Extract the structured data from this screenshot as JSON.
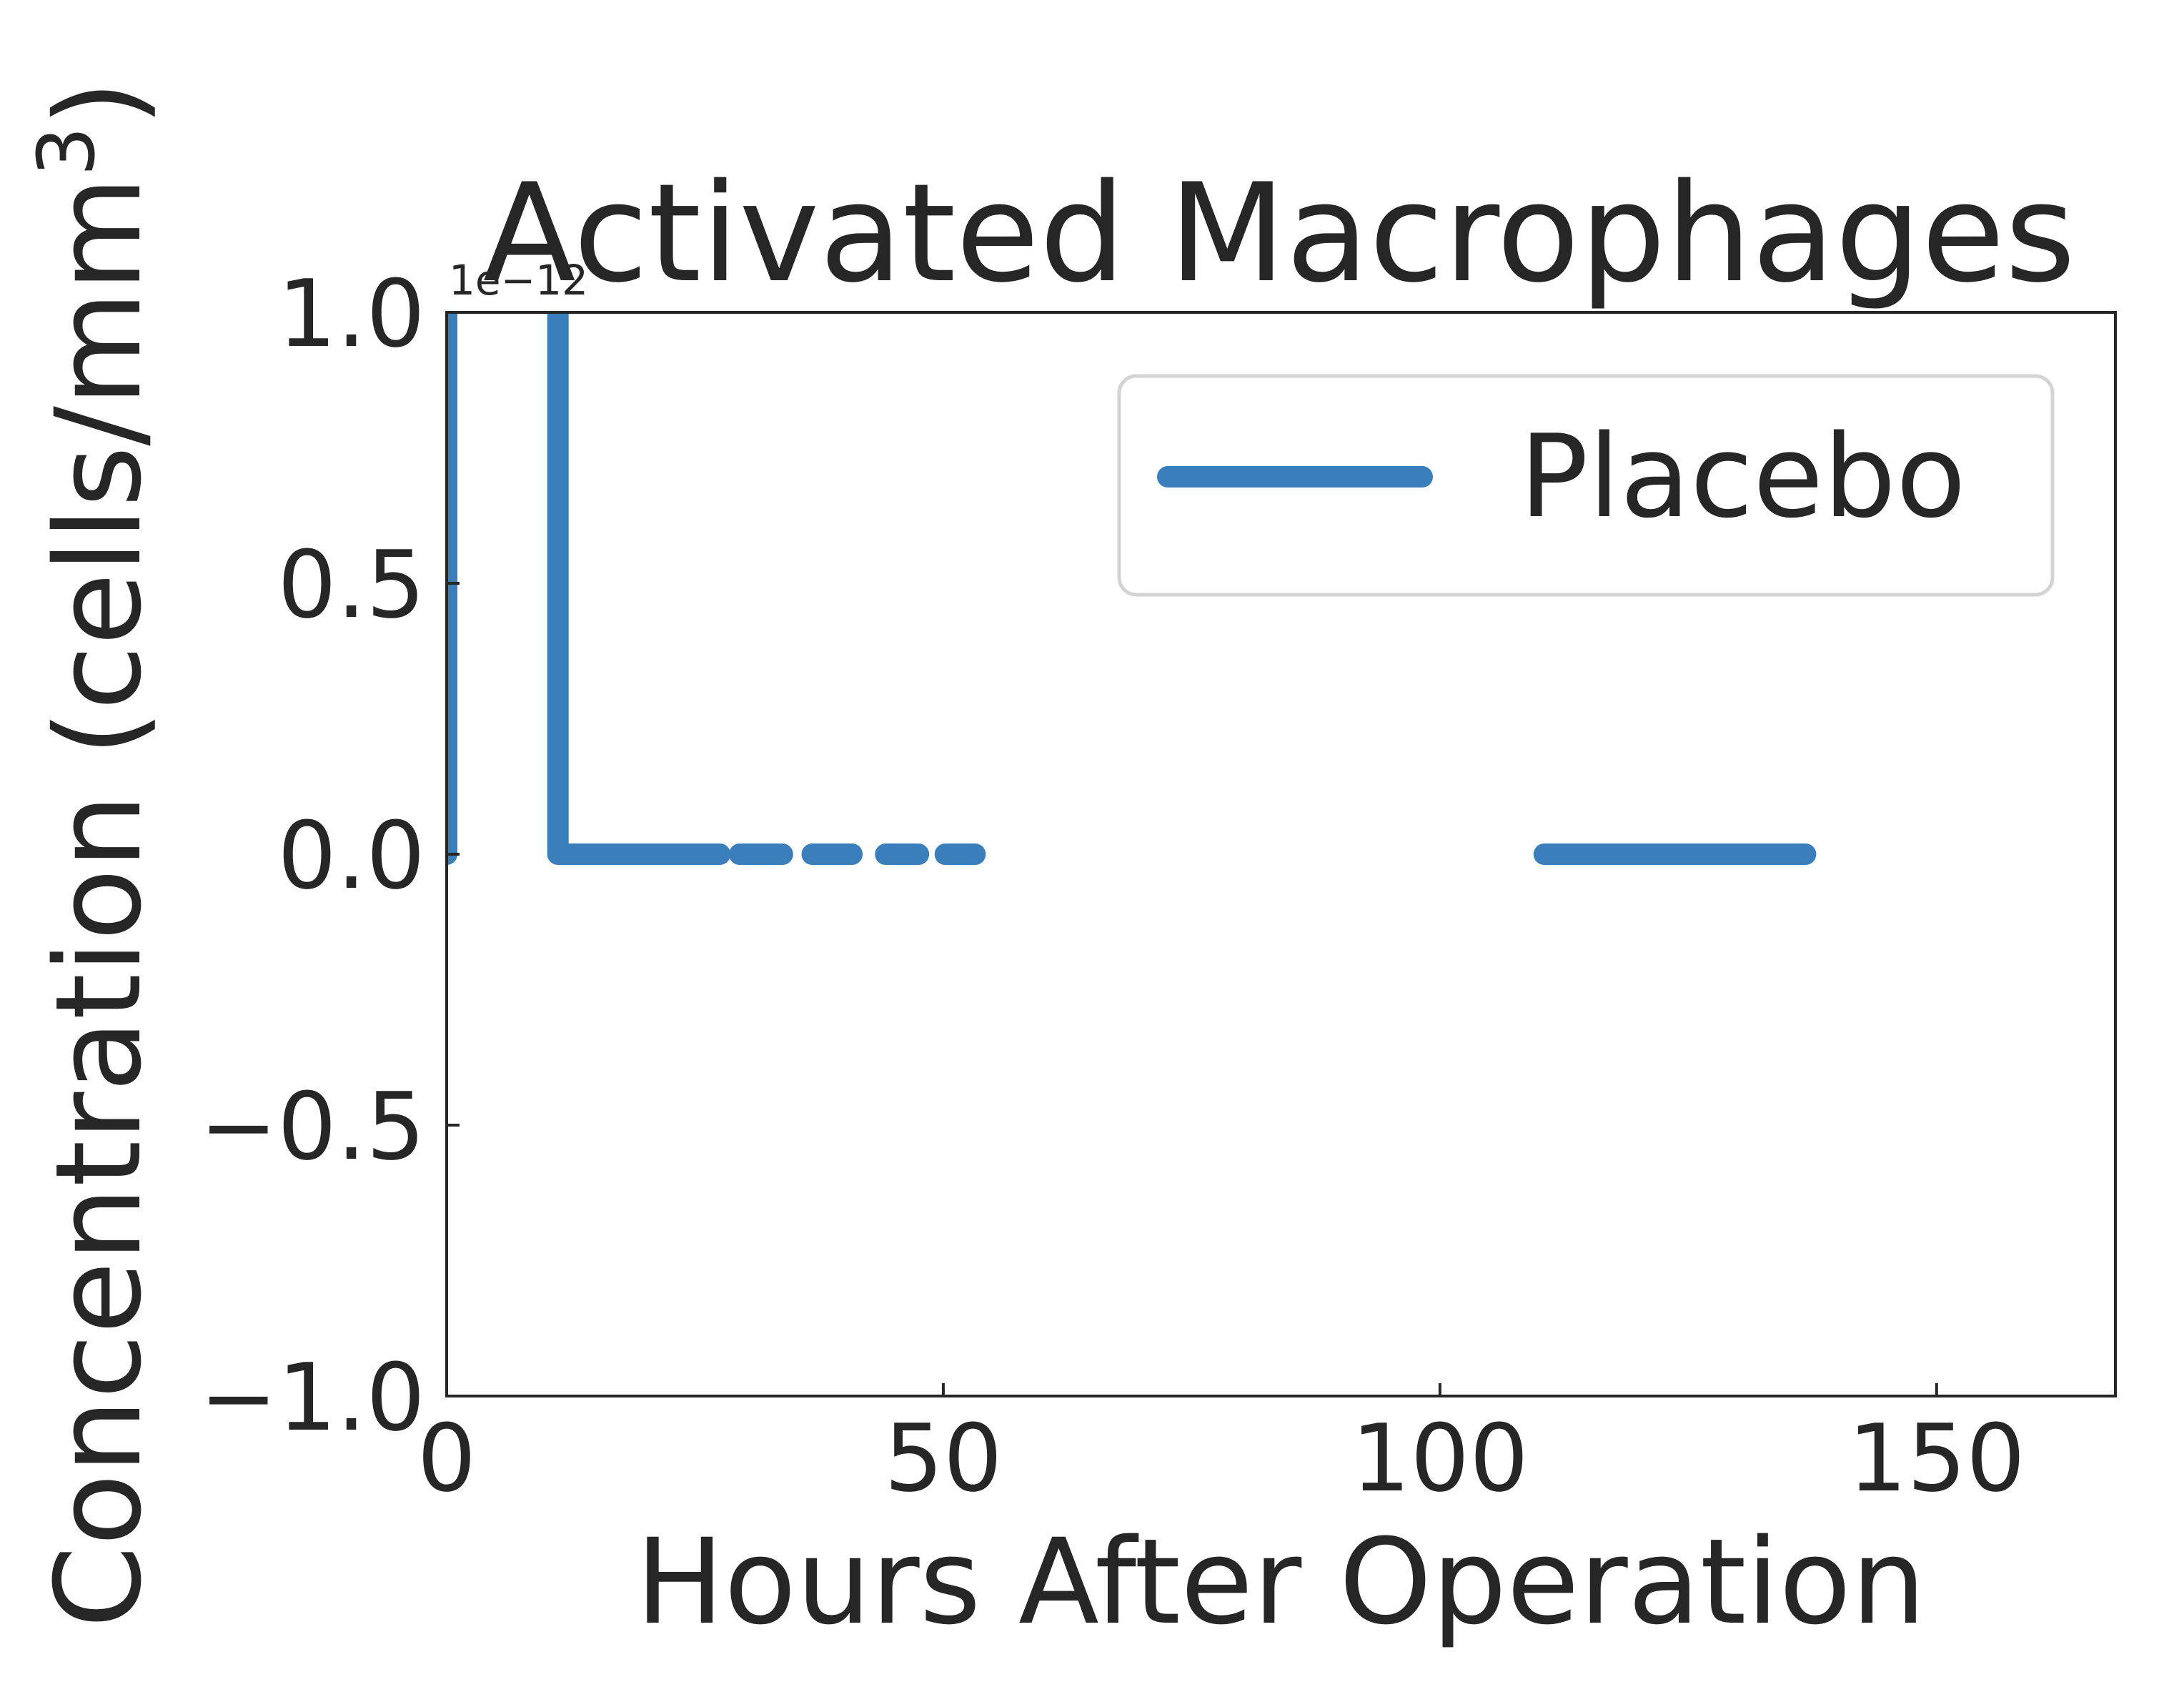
{
  "chart_data": {
    "type": "line",
    "title": "Activated Macrophages",
    "xlabel": "Hours After Operation",
    "ylabel": "Concentration (cells/mm",
    "ylabel_sup": "3",
    "ylabel_close": ")",
    "y_offset_label": "1e−12",
    "xlim": [
      0,
      168
    ],
    "ylim": [
      -1.0,
      1.0
    ],
    "x_ticks": [
      0,
      50,
      100,
      150
    ],
    "x_tick_labels": [
      "0",
      "50",
      "100",
      "150"
    ],
    "y_ticks": [
      1.0,
      0.5,
      0.0,
      -0.5,
      -1.0
    ],
    "y_tick_labels": [
      "1.0",
      "0.5",
      "0.0",
      "−0.5",
      "−1.0"
    ],
    "grid": false,
    "legend_position": "top-right",
    "colors": {
      "placebo": "#3a7fbb",
      "text": "#262626",
      "axes": "#262626",
      "legend_border": "#d4d4d4"
    },
    "series": [
      {
        "name": "Placebo",
        "segments": [
          [
            [
              0,
              0
            ],
            [
              0,
              1.0
            ]
          ],
          [
            [
              11.2,
              1.0
            ],
            [
              11.2,
              0
            ],
            [
              27.5,
              0
            ]
          ],
          [
            [
              29.5,
              0
            ],
            [
              33.8,
              0
            ]
          ],
          [
            [
              36.8,
              0
            ],
            [
              40.8,
              0
            ]
          ],
          [
            [
              44.2,
              0
            ],
            [
              47.5,
              0
            ]
          ],
          [
            [
              50.2,
              0
            ],
            [
              53.2,
              0
            ]
          ],
          [
            [
              110.5,
              0
            ],
            [
              136.8,
              0
            ]
          ]
        ]
      }
    ]
  }
}
